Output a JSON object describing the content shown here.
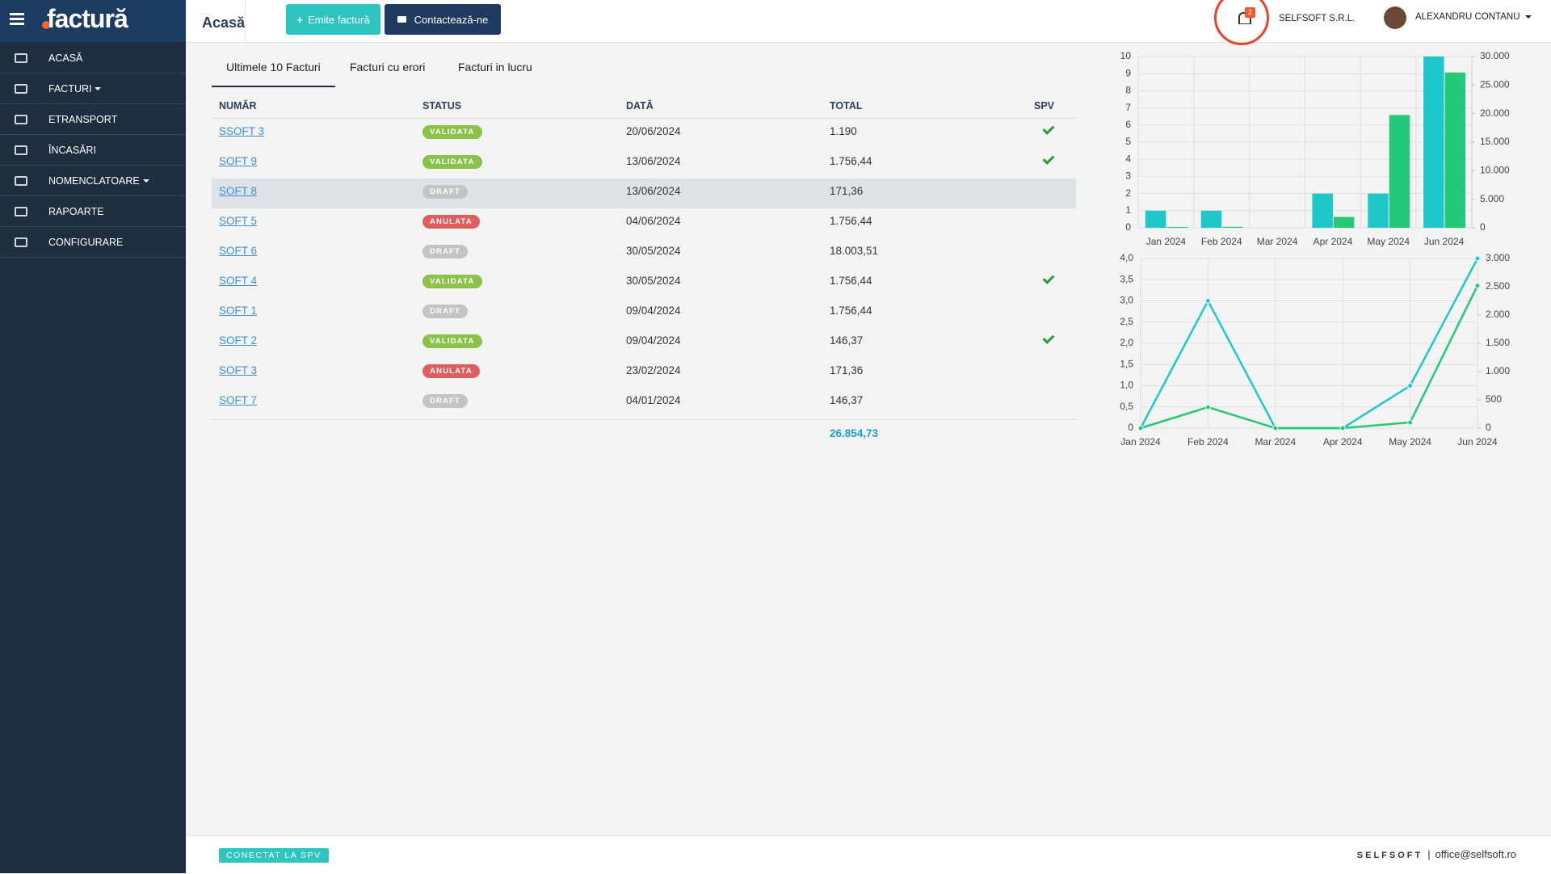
{
  "sidebar": {
    "logo": "factură",
    "menu": [
      {
        "label": "ACASĂ"
      },
      {
        "label": "FACTURI",
        "dropdown": true
      },
      {
        "label": "ETRANSPORT"
      },
      {
        "label": "ÎNCASĂRI"
      },
      {
        "label": "NOMENCLATOARE",
        "dropdown": true
      },
      {
        "label": "RAPOARTE"
      },
      {
        "label": "CONFIGURARE"
      }
    ]
  },
  "header": {
    "page_title": "Acasă",
    "buttons": [
      "Emite factură",
      "Contactează-ne"
    ],
    "notifications": "2",
    "company": "SELFSOFT S.R.L.",
    "user": "ALEXANDRU CONTANU"
  },
  "tabs": [
    "Ultimele 10 Facturi",
    "Facturi cu erori",
    "Facturi in lucru"
  ],
  "table": {
    "columns": [
      "NUMĂR",
      "STATUS",
      "DATĂ",
      "TOTAL",
      "SPV"
    ],
    "rows": [
      {
        "number": "SSOFT 3",
        "status": "VALIDATA",
        "date": "20/06/2024",
        "total": "1.190",
        "spv": true
      },
      {
        "number": "SOFT 9",
        "status": "VALIDATA",
        "date": "13/06/2024",
        "total": "1.756,44",
        "spv": true
      },
      {
        "number": "SOFT 8",
        "status": "DRAFT",
        "date": "13/06/2024",
        "total": "171,36",
        "spv": false
      },
      {
        "number": "SOFT 5",
        "status": "ANULATA",
        "date": "04/06/2024",
        "total": "1.756,44",
        "spv": false
      },
      {
        "number": "SOFT 6",
        "status": "DRAFT",
        "date": "30/05/2024",
        "total": "18.003,51",
        "spv": false
      },
      {
        "number": "SOFT 4",
        "status": "VALIDATA",
        "date": "30/05/2024",
        "total": "1.756,44",
        "spv": true
      },
      {
        "number": "SOFT 1",
        "status": "DRAFT",
        "date": "09/04/2024",
        "total": "1.756,44",
        "spv": false
      },
      {
        "number": "SOFT 2",
        "status": "VALIDATA",
        "date": "09/04/2024",
        "total": "146,37",
        "spv": true
      },
      {
        "number": "SOFT 3",
        "status": "ANULATA",
        "date": "23/02/2024",
        "total": "171,36",
        "spv": false
      },
      {
        "number": "SOFT 7",
        "status": "DRAFT",
        "date": "04/01/2024",
        "total": "146,37",
        "spv": false
      }
    ],
    "total": "26.854,73"
  },
  "charts": [
    {
      "type": "bar",
      "categories": [
        "Jan 2024",
        "Feb 2024",
        "Mar 2024",
        "Apr 2024",
        "May 2024",
        "Jun 2024"
      ],
      "series": [
        {
          "color": "#1ec8c8",
          "values": [
            1,
            1,
            0,
            2,
            2,
            10
          ]
        },
        {
          "color": "#23c879",
          "axis": "y2",
          "values": [
            150,
            170,
            0,
            1900,
            19760,
            27200
          ]
        }
      ],
      "ylim": [
        0,
        10
      ],
      "yticks": [
        0,
        1,
        2,
        3,
        4,
        5,
        6,
        7,
        8,
        9,
        10
      ],
      "y2lim": [
        0,
        30000
      ],
      "y2ticks": [
        0,
        {
          "value": 5000,
          "label": "5.000"
        },
        {
          "value": 10000,
          "label": "10.000"
        },
        {
          "value": 15000,
          "label": "15.000"
        },
        {
          "value": 20000,
          "label": "20.000"
        },
        {
          "value": 25000,
          "label": "25.000"
        },
        {
          "value": 30000,
          "label": "30.000"
        }
      ],
      "grid": true
    },
    {
      "type": "line",
      "categories": [
        "Jan 2024",
        "Feb 2024",
        "Mar 2024",
        "Apr 2024",
        "May 2024",
        "Jun 2024"
      ],
      "series": [
        {
          "color": "#1ec8c8",
          "values": [
            0,
            3.0,
            0,
            0,
            1.0,
            4.0
          ]
        },
        {
          "color": "#23c879",
          "axis": "y2",
          "values": [
            0,
            370,
            0,
            0,
            100,
            2520
          ]
        }
      ],
      "ylim": [
        0,
        4
      ],
      "yticks": [
        0,
        {
          "value": 0.5,
          "label": "0,5"
        },
        {
          "value": 1,
          "label": "1,0"
        },
        {
          "value": 1.5,
          "label": "1,5"
        },
        {
          "value": 2,
          "label": "2,0"
        },
        {
          "value": 2.5,
          "label": "2,5"
        },
        {
          "value": 3,
          "label": "3,0"
        },
        {
          "value": 3.5,
          "label": "3,5"
        },
        {
          "value": 4,
          "label": "4,0"
        }
      ],
      "y2lim": [
        0,
        3000
      ],
      "y2ticks": [
        0,
        500,
        {
          "value": 1000,
          "label": "1.000"
        },
        {
          "value": 1500,
          "label": "1.500"
        },
        {
          "value": 2000,
          "label": "2.000"
        },
        {
          "value": 2500,
          "label": "2.500"
        },
        {
          "value": 3000,
          "label": "3.000"
        }
      ],
      "grid": true
    }
  ],
  "footer": {
    "status": "CONECTAT LA SPV",
    "brand": "SELFSOFT",
    "email": "office@selfsoft.ro"
  }
}
